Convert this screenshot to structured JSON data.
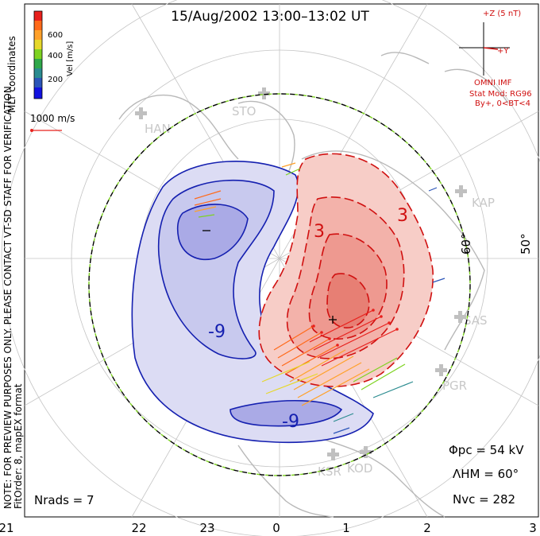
{
  "title": "15/Aug/2002 13:00–13:02 UT",
  "colorbar": {
    "label": "Vel [m/s]",
    "ticks": [
      "600",
      "400",
      "200"
    ],
    "colors": [
      "#e8201c",
      "#ff6a1a",
      "#ffa12a",
      "#e6d82a",
      "#7ed321",
      "#2fa84a",
      "#2a8b8f",
      "#2b55b8",
      "#1212e0"
    ]
  },
  "side_labels": {
    "mlt": "MLT coordinates",
    "note": "NOTE: FOR PREVIEW PURPOSES ONLY. PLEASE CONTACT VT-SD STAFF FOR VERIFICATION.",
    "fitorder": "FitOrder: 8, mapEX format"
  },
  "reference_vector": "1000 m/s",
  "imf": {
    "axis_z": "+Z (5 nT)",
    "axis_y": "+Y",
    "source": "OMNI IMF",
    "model": "Stat Mod: RG96",
    "condition": "By+, 0<BT<4"
  },
  "latitude_labels": [
    "60°",
    "50°"
  ],
  "stations": [
    "STO",
    "HAN",
    "KAP",
    "SAS",
    "PGR",
    "KSR",
    "KOD"
  ],
  "contour_labels": [
    "3",
    "3",
    "-9",
    "-9"
  ],
  "stats": {
    "phi_pc": "Φpc = 54 kV",
    "lambda_hm": "ΛHM = 60°",
    "n_vc": "Nvc = 282",
    "n_rads": "Nrads = 7"
  },
  "mlt_axis": [
    "21",
    "22",
    "23",
    "0",
    "1",
    "2",
    "3"
  ],
  "colors": {
    "positive_fill": "#f4b8b0",
    "negative_fill": "#cfd0f0",
    "positive_line": "#d01010",
    "negative_line": "#1520b0",
    "land": "#c8c8c8",
    "grid": "#c0c0c0"
  }
}
